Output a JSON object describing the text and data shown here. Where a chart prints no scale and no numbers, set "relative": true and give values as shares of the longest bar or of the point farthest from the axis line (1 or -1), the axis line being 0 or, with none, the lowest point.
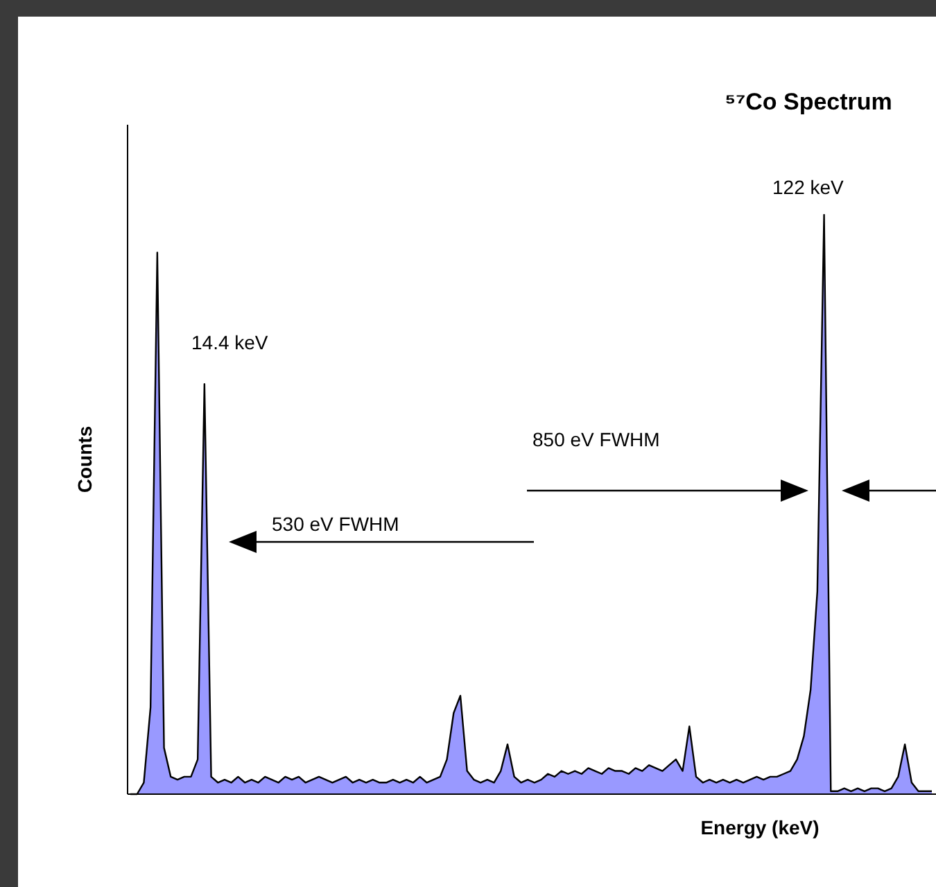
{
  "chart_data": {
    "type": "area",
    "title": "⁵⁷Co Spectrum",
    "xlabel": "Energy (keV)",
    "ylabel": "Counts",
    "relative": true,
    "categories": [
      null,
      null,
      null,
      null,
      null,
      null,
      null,
      null,
      null,
      null,
      null,
      null,
      null,
      null,
      null,
      null,
      null,
      null,
      null,
      null,
      null,
      null,
      null,
      null,
      null,
      null,
      null,
      null,
      null,
      null,
      null,
      null,
      null,
      null,
      null,
      null,
      null,
      null,
      null,
      null,
      null,
      null,
      null,
      null,
      null,
      null,
      null,
      null,
      null,
      null,
      null,
      null,
      null,
      null,
      null,
      null,
      null,
      null,
      null,
      null,
      null,
      null,
      null,
      null,
      null,
      null,
      null,
      null,
      null,
      null,
      null,
      null,
      null,
      null,
      null,
      null,
      null,
      null,
      null,
      null,
      null,
      null,
      null,
      null,
      null,
      null,
      null,
      null,
      null,
      null,
      null,
      null,
      null,
      null,
      null,
      null,
      null,
      null,
      null,
      null,
      null,
      null,
      null,
      null,
      null,
      null,
      null,
      null,
      null,
      null,
      null,
      null,
      null,
      null,
      null,
      null,
      null,
      null,
      null,
      null
    ],
    "series": [
      {
        "color": "#9999ff",
        "values": [
          0,
          0,
          0.02,
          0.15,
          0.935,
          0.08,
          0.03,
          0.025,
          0.03,
          0.03,
          0.06,
          0.708,
          0.03,
          0.02,
          0.025,
          0.02,
          0.03,
          0.02,
          0.025,
          0.02,
          0.03,
          0.025,
          0.02,
          0.03,
          0.025,
          0.03,
          0.02,
          0.025,
          0.03,
          0.025,
          0.02,
          0.025,
          0.03,
          0.02,
          0.025,
          0.02,
          0.025,
          0.02,
          0.02,
          0.025,
          0.02,
          0.025,
          0.02,
          0.03,
          0.02,
          0.025,
          0.03,
          0.06,
          0.14,
          0.17,
          0.04,
          0.025,
          0.02,
          0.025,
          0.02,
          0.04,
          0.086,
          0.03,
          0.02,
          0.025,
          0.02,
          0.025,
          0.035,
          0.03,
          0.04,
          0.035,
          0.04,
          0.035,
          0.045,
          0.04,
          0.035,
          0.045,
          0.04,
          0.04,
          0.035,
          0.045,
          0.04,
          0.05,
          0.045,
          0.04,
          0.05,
          0.06,
          0.04,
          0.117,
          0.03,
          0.02,
          0.025,
          0.02,
          0.025,
          0.02,
          0.025,
          0.02,
          0.025,
          0.03,
          0.025,
          0.03,
          0.03,
          0.035,
          0.04,
          0.06,
          0.1,
          0.18,
          0.35,
          1,
          0.005,
          0.005,
          0.01,
          0.005,
          0.01,
          0.005,
          0.01,
          0.01,
          0.005,
          0.01,
          0.03,
          0.086,
          0.02,
          0.005,
          0.005,
          0.005
        ]
      }
    ],
    "annotations": [
      "14.4 keV",
      "122 keV",
      "850 eV FWHM",
      "530 eV FWHM"
    ]
  }
}
